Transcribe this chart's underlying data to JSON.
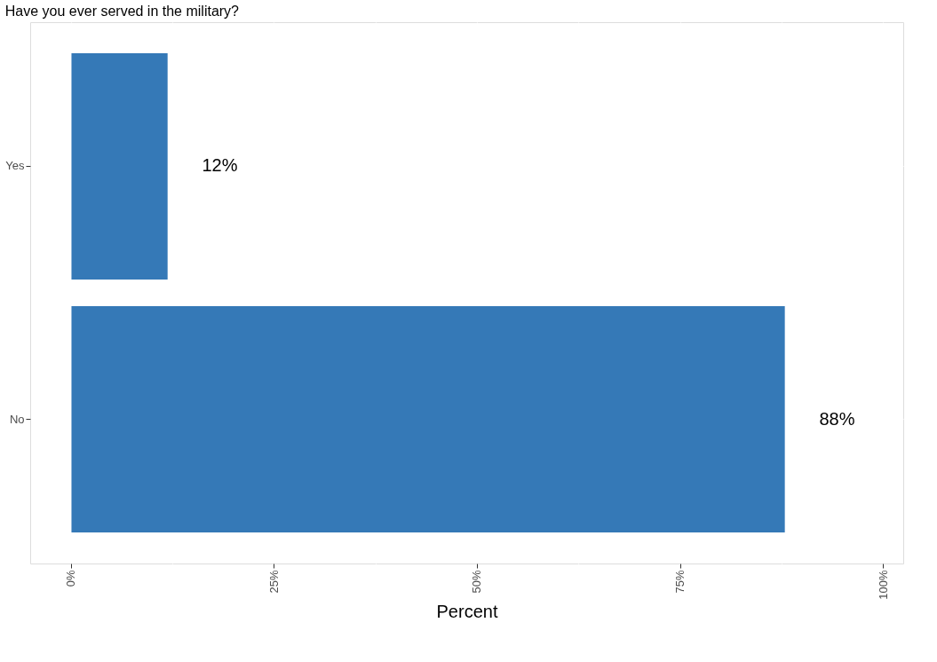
{
  "chart_data": {
    "type": "bar",
    "orientation": "horizontal",
    "title": "Have you ever served in the military?",
    "xlabel": "Percent",
    "categories": [
      "Yes",
      "No"
    ],
    "values": [
      12,
      88
    ],
    "color": "#3579b7",
    "value_labels": [
      "12%",
      "88%"
    ],
    "xlim": [
      -5,
      102.5
    ],
    "xticks": [
      {
        "value": 0,
        "label": "0%"
      },
      {
        "value": 12.5,
        "label": null
      },
      {
        "value": 25,
        "label": "25%"
      },
      {
        "value": 37.5,
        "label": null
      },
      {
        "value": 50,
        "label": "50%"
      },
      {
        "value": 62.5,
        "label": null
      },
      {
        "value": 75,
        "label": "75%"
      },
      {
        "value": 87.5,
        "label": null
      },
      {
        "value": 100,
        "label": "100%"
      }
    ],
    "grid": true
  }
}
